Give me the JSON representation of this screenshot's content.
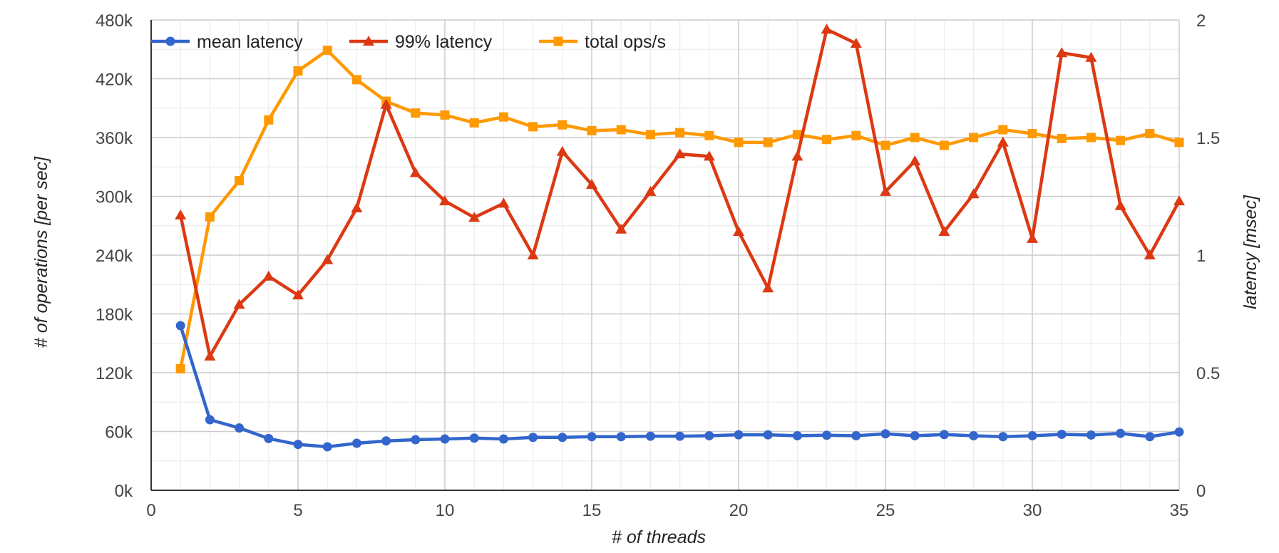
{
  "chart_data": {
    "type": "line",
    "xlabel": "# of threads",
    "ylabel_left": "# of operations [per sec]",
    "ylabel_right": "latency [msec]",
    "xlim": [
      0,
      35
    ],
    "ylim_left": [
      0,
      480000
    ],
    "ylim_right": [
      0,
      2
    ],
    "x_ticks": [
      0,
      5,
      10,
      15,
      20,
      25,
      30,
      35
    ],
    "x_tick_labels": [
      "0",
      "5",
      "10",
      "15",
      "20",
      "25",
      "30",
      "35"
    ],
    "y_left_ticks": [
      0,
      60000,
      120000,
      180000,
      240000,
      300000,
      360000,
      420000,
      480000
    ],
    "y_left_tick_labels": [
      "0k",
      "60k",
      "120k",
      "180k",
      "240k",
      "300k",
      "360k",
      "420k",
      "480k"
    ],
    "y_right_ticks": [
      0,
      0.5,
      1,
      1.5,
      2
    ],
    "y_right_tick_labels": [
      "0",
      "0.5",
      "1",
      "1.5",
      "2"
    ],
    "grid": true,
    "legend_position": "top-left",
    "x": [
      1,
      2,
      3,
      4,
      5,
      6,
      7,
      8,
      9,
      10,
      11,
      12,
      13,
      14,
      15,
      16,
      17,
      18,
      19,
      20,
      21,
      22,
      23,
      24,
      25,
      26,
      27,
      28,
      29,
      30,
      31,
      32,
      33,
      34,
      35
    ],
    "series": [
      {
        "name": "mean latency",
        "axis": "right",
        "color": "#3366cc",
        "marker": "circle",
        "values": [
          0.7,
          0.3,
          0.265,
          0.22,
          0.195,
          0.185,
          0.2,
          0.21,
          0.215,
          0.218,
          0.222,
          0.218,
          0.225,
          0.225,
          0.228,
          0.228,
          0.23,
          0.23,
          0.232,
          0.236,
          0.236,
          0.232,
          0.234,
          0.232,
          0.24,
          0.232,
          0.237,
          0.232,
          0.228,
          0.232,
          0.238,
          0.235,
          0.242,
          0.228,
          0.248
        ]
      },
      {
        "name": "99% latency",
        "axis": "right",
        "color": "#dc3912",
        "marker": "triangle",
        "values": [
          1.17,
          0.57,
          0.79,
          0.91,
          0.83,
          0.98,
          1.2,
          1.64,
          1.35,
          1.23,
          1.16,
          1.22,
          1.0,
          1.44,
          1.3,
          1.11,
          1.27,
          1.43,
          1.42,
          1.1,
          0.86,
          1.42,
          1.96,
          1.9,
          1.27,
          1.4,
          1.1,
          1.26,
          1.48,
          1.07,
          1.86,
          1.84,
          1.21,
          1.0,
          1.23
        ]
      },
      {
        "name": "total ops/s",
        "axis": "left",
        "color": "#ff9900",
        "marker": "square",
        "values": [
          124000,
          279000,
          316000,
          378000,
          428000,
          449000,
          419000,
          397000,
          385000,
          383000,
          375000,
          381000,
          371000,
          373000,
          367000,
          368000,
          363000,
          365000,
          362000,
          355000,
          355000,
          363000,
          358000,
          362000,
          352000,
          360000,
          352000,
          360000,
          368000,
          364000,
          359000,
          360000,
          357000,
          364000,
          355000
        ]
      }
    ]
  }
}
